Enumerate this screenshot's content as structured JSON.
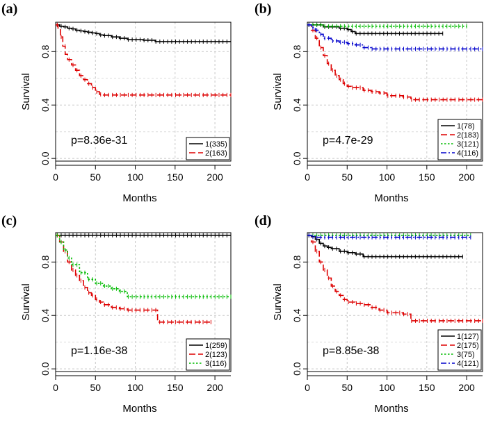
{
  "chart_data": [
    {
      "type": "line",
      "panel": "(a)",
      "title": "",
      "xlabel": "Months",
      "ylabel": "Survival",
      "xlim": [
        0,
        220
      ],
      "ylim": [
        -0.02,
        1.02
      ],
      "xticks": [
        0,
        50,
        100,
        150,
        200
      ],
      "yticks": [
        0.0,
        0.4,
        0.8
      ],
      "ytick_labels": [
        "0.0",
        "0.4",
        "0.8"
      ],
      "xtick_labels": [
        "0",
        "50",
        "100",
        "150",
        "200"
      ],
      "grid": true,
      "annotation": "p=8.36e-31",
      "legend_position": "bottom-right",
      "series": [
        {
          "name": "1(335)",
          "color": "#000000",
          "dash": "solid",
          "x": [
            0,
            5,
            10,
            15,
            20,
            25,
            30,
            35,
            40,
            45,
            50,
            55,
            60,
            70,
            80,
            90,
            100,
            110,
            120,
            125,
            130,
            150,
            170,
            200,
            220
          ],
          "y": [
            1.0,
            0.99,
            0.985,
            0.975,
            0.97,
            0.96,
            0.955,
            0.95,
            0.945,
            0.94,
            0.935,
            0.925,
            0.92,
            0.91,
            0.9,
            0.89,
            0.89,
            0.885,
            0.885,
            0.875,
            0.875,
            0.875,
            0.875,
            0.875,
            0.875
          ]
        },
        {
          "name": "2(163)",
          "color": "#dd0000",
          "dash": "dashed",
          "x": [
            0,
            3,
            6,
            9,
            12,
            15,
            20,
            25,
            30,
            35,
            40,
            45,
            50,
            55,
            60,
            80,
            100,
            150,
            200,
            220
          ],
          "y": [
            1.0,
            0.97,
            0.91,
            0.84,
            0.78,
            0.74,
            0.7,
            0.66,
            0.62,
            0.59,
            0.56,
            0.53,
            0.5,
            0.48,
            0.475,
            0.475,
            0.475,
            0.475,
            0.475,
            0.475
          ]
        }
      ]
    },
    {
      "type": "line",
      "panel": "(b)",
      "title": "",
      "xlabel": "Months",
      "ylabel": "Survival",
      "xlim": [
        0,
        220
      ],
      "ylim": [
        -0.02,
        1.02
      ],
      "xticks": [
        0,
        50,
        100,
        150,
        200
      ],
      "yticks": [
        0.0,
        0.4,
        0.8
      ],
      "ytick_labels": [
        "0.0",
        "0.4",
        "0.8"
      ],
      "xtick_labels": [
        "0",
        "50",
        "100",
        "150",
        "200"
      ],
      "grid": true,
      "annotation": "p=4.7e-29",
      "legend_position": "bottom-right",
      "series": [
        {
          "name": "1(78)",
          "color": "#000000",
          "dash": "solid",
          "x": [
            0,
            10,
            20,
            30,
            40,
            50,
            55,
            60,
            80,
            100,
            120,
            150,
            170
          ],
          "y": [
            1.0,
            1.0,
            0.985,
            0.985,
            0.975,
            0.965,
            0.95,
            0.935,
            0.935,
            0.935,
            0.935,
            0.935,
            0.935
          ]
        },
        {
          "name": "2(183)",
          "color": "#dd0000",
          "dash": "dashed",
          "x": [
            0,
            5,
            10,
            15,
            20,
            25,
            30,
            35,
            40,
            45,
            50,
            55,
            60,
            70,
            80,
            90,
            100,
            110,
            120,
            130,
            150,
            200,
            220
          ],
          "y": [
            1.0,
            0.96,
            0.9,
            0.83,
            0.77,
            0.71,
            0.66,
            0.62,
            0.59,
            0.56,
            0.54,
            0.53,
            0.53,
            0.51,
            0.5,
            0.49,
            0.47,
            0.47,
            0.46,
            0.44,
            0.44,
            0.44,
            0.44
          ]
        },
        {
          "name": "3(121)",
          "color": "#00bb00",
          "dash": "dotted",
          "x": [
            0,
            10,
            20,
            100,
            150,
            200
          ],
          "y": [
            1.0,
            1.0,
            0.99,
            0.99,
            0.99,
            0.99
          ]
        },
        {
          "name": "4(116)",
          "color": "#0000cc",
          "dash": "dashdot",
          "x": [
            0,
            5,
            10,
            15,
            20,
            30,
            40,
            50,
            60,
            70,
            80,
            100,
            150,
            200,
            220
          ],
          "y": [
            1.0,
            0.98,
            0.96,
            0.93,
            0.9,
            0.88,
            0.87,
            0.86,
            0.85,
            0.83,
            0.82,
            0.82,
            0.82,
            0.82,
            0.82
          ]
        }
      ]
    },
    {
      "type": "line",
      "panel": "(c)",
      "title": "",
      "xlabel": "Months",
      "ylabel": "Survival",
      "xlim": [
        0,
        220
      ],
      "ylim": [
        -0.02,
        1.02
      ],
      "xticks": [
        0,
        50,
        100,
        150,
        200
      ],
      "yticks": [
        0.0,
        0.4,
        0.8
      ],
      "ytick_labels": [
        "0.0",
        "0.4",
        "0.8"
      ],
      "xtick_labels": [
        "0",
        "50",
        "100",
        "150",
        "200"
      ],
      "grid": true,
      "annotation": "p=1.16e-38",
      "legend_position": "bottom-right",
      "series": [
        {
          "name": "1(259)",
          "color": "#000000",
          "dash": "solid",
          "x": [
            0,
            50,
            100,
            150,
            200,
            220
          ],
          "y": [
            1.0,
            1.0,
            1.0,
            1.0,
            1.0,
            1.0
          ]
        },
        {
          "name": "2(123)",
          "color": "#dd0000",
          "dash": "dashed",
          "x": [
            0,
            5,
            10,
            15,
            20,
            25,
            30,
            35,
            40,
            45,
            50,
            55,
            60,
            70,
            80,
            90,
            100,
            127,
            128,
            150,
            195
          ],
          "y": [
            1.0,
            0.95,
            0.88,
            0.8,
            0.74,
            0.7,
            0.66,
            0.61,
            0.57,
            0.55,
            0.52,
            0.5,
            0.48,
            0.46,
            0.45,
            0.44,
            0.44,
            0.44,
            0.35,
            0.35,
            0.35
          ]
        },
        {
          "name": "3(116)",
          "color": "#00bb00",
          "dash": "dotted",
          "x": [
            0,
            5,
            10,
            15,
            20,
            30,
            40,
            50,
            60,
            70,
            80,
            90,
            100,
            150,
            200,
            220
          ],
          "y": [
            1.0,
            0.95,
            0.89,
            0.83,
            0.78,
            0.72,
            0.67,
            0.64,
            0.62,
            0.6,
            0.58,
            0.54,
            0.54,
            0.54,
            0.54,
            0.54
          ]
        }
      ]
    },
    {
      "type": "line",
      "panel": "(d)",
      "title": "",
      "xlabel": "Months",
      "ylabel": "Survival",
      "xlim": [
        0,
        220
      ],
      "ylim": [
        -0.02,
        1.02
      ],
      "xticks": [
        0,
        50,
        100,
        150,
        200
      ],
      "yticks": [
        0.0,
        0.4,
        0.8
      ],
      "ytick_labels": [
        "0.0",
        "0.4",
        "0.8"
      ],
      "xtick_labels": [
        "0",
        "50",
        "100",
        "150",
        "200"
      ],
      "grid": true,
      "annotation": "p=8.85e-38",
      "legend_position": "bottom-right",
      "series": [
        {
          "name": "1(127)",
          "color": "#000000",
          "dash": "solid",
          "x": [
            0,
            5,
            10,
            15,
            20,
            25,
            30,
            40,
            50,
            60,
            70,
            100,
            150,
            195
          ],
          "y": [
            1.0,
            0.99,
            0.97,
            0.94,
            0.92,
            0.91,
            0.9,
            0.88,
            0.87,
            0.86,
            0.84,
            0.84,
            0.84,
            0.84
          ]
        },
        {
          "name": "2(175)",
          "color": "#dd0000",
          "dash": "dashed",
          "x": [
            0,
            5,
            10,
            15,
            20,
            25,
            30,
            35,
            40,
            45,
            50,
            55,
            60,
            70,
            80,
            90,
            100,
            110,
            120,
            130,
            150,
            200,
            220
          ],
          "y": [
            1.0,
            0.95,
            0.88,
            0.8,
            0.74,
            0.68,
            0.62,
            0.58,
            0.55,
            0.52,
            0.5,
            0.5,
            0.49,
            0.48,
            0.46,
            0.44,
            0.42,
            0.42,
            0.41,
            0.36,
            0.36,
            0.36,
            0.36
          ]
        },
        {
          "name": "3(75)",
          "color": "#00bb00",
          "dash": "dotted",
          "x": [
            0,
            50,
            100,
            150,
            205
          ],
          "y": [
            1.0,
            1.0,
            1.0,
            1.0,
            1.0
          ]
        },
        {
          "name": "4(121)",
          "color": "#0000cc",
          "dash": "dashdot",
          "x": [
            0,
            5,
            10,
            50,
            100,
            150,
            205
          ],
          "y": [
            1.0,
            0.99,
            0.985,
            0.985,
            0.985,
            0.985,
            0.985
          ]
        }
      ]
    }
  ]
}
